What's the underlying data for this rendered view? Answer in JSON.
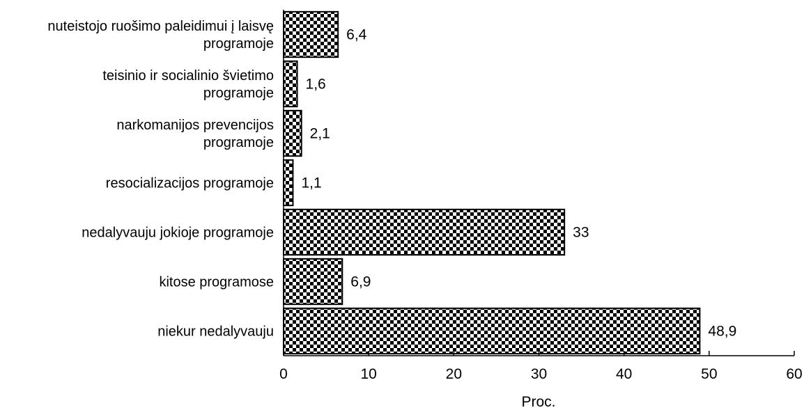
{
  "chart_data": {
    "type": "bar",
    "orientation": "horizontal",
    "categories": [
      [
        "nuteistojo ruošimo paleidimui į laisvę",
        "programoje"
      ],
      [
        "teisinio ir socialinio švietimo",
        "programoje"
      ],
      [
        "narkomanijos prevencijos",
        "programoje"
      ],
      [
        "resocializacijos programoje"
      ],
      [
        "nedalyvauju jokioje programoje"
      ],
      [
        "kitose programose"
      ],
      [
        "niekur nedalyvauju"
      ]
    ],
    "values": [
      6.4,
      1.6,
      2.1,
      1.1,
      33,
      6.9,
      48.9
    ],
    "data_labels": [
      "6,4",
      "1,6",
      "2,1",
      "1,1",
      "33",
      "6,9",
      "48,9"
    ],
    "title": "",
    "xlabel": "Proc.",
    "ylabel": "",
    "xlim": [
      0,
      60
    ],
    "xticks": [
      0,
      10,
      20,
      30,
      40,
      50,
      60
    ],
    "grid": false,
    "bar_fill": "checkered black and white",
    "colors": {
      "bar_dark": "#000000",
      "bar_light": "#ffffff",
      "axis": "#000000"
    }
  }
}
